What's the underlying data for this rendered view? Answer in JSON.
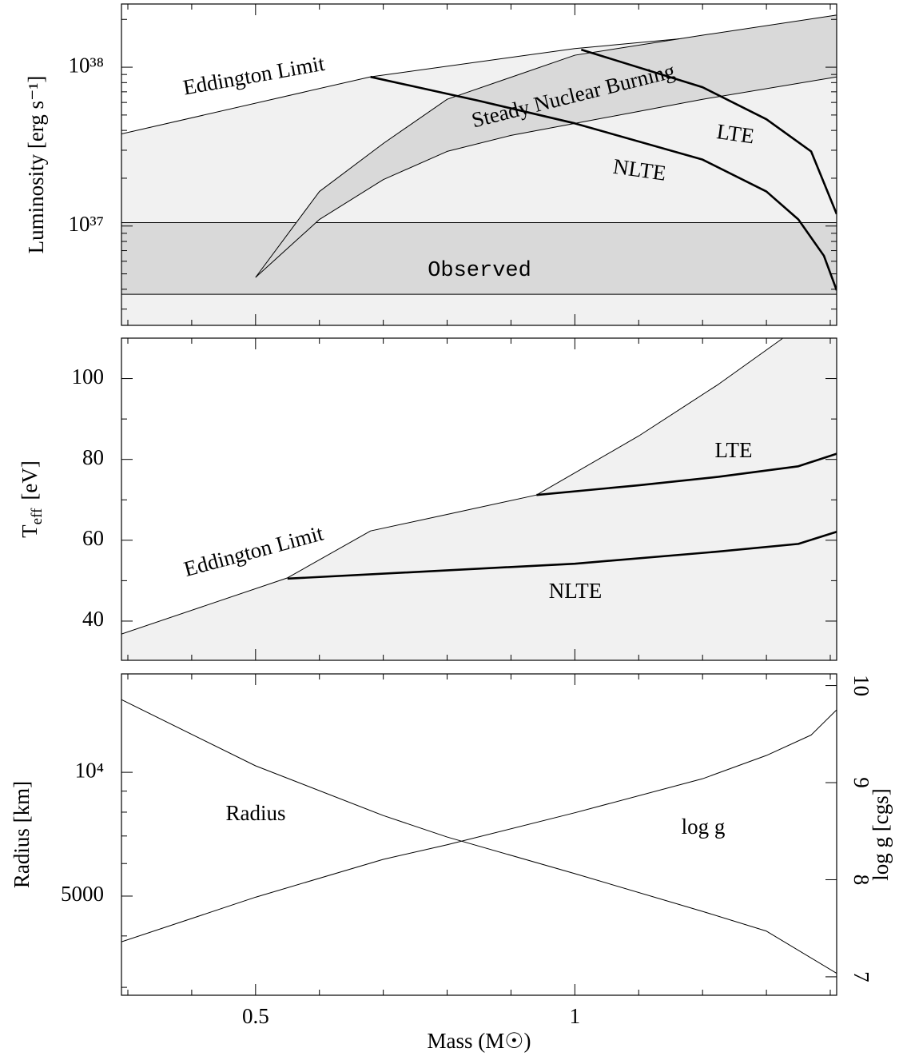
{
  "chart_data": [
    {
      "type": "line",
      "ylabel": "Luminosity [erg s⁻¹]",
      "ylog": true,
      "xlim": [
        0.29,
        1.41
      ],
      "ylim": [
        2.37e+36,
        2.5e+38
      ],
      "yticks": [
        {
          "value": 1e+37,
          "label": "10³⁷"
        },
        {
          "value": 1e+38,
          "label": "10³⁸"
        }
      ],
      "yminor_ticks": [
        3e+36,
        4e+36,
        5e+36,
        6e+36,
        7e+36,
        8e+36,
        9e+36,
        2e+37,
        3e+37,
        4e+37,
        5e+37,
        6e+37,
        7e+37,
        8e+37,
        9e+37,
        2e+38
      ],
      "series": [
        {
          "name": "Eddington Limit",
          "color": "#000000",
          "fill": "#f1f1f1",
          "width": 1,
          "x": [
            0.29,
            0.68,
            1.0,
            1.225,
            1.41
          ],
          "values": [
            3.8e+37,
            8.7e+37,
            1.31e+38,
            1.59e+38,
            2.13e+38
          ]
        },
        {
          "name": "Observed",
          "color": "#000000",
          "fill": "#d9d9d9",
          "range": [
            3.72e+36,
            1.05e+37
          ]
        },
        {
          "name": "Steady Nuclear Burning",
          "color": "#000000",
          "fill": "#d9d9d9",
          "upper": {
            "x": [
              0.5,
              0.6,
              0.7,
              0.8,
              1.0,
              1.2,
              1.41
            ],
            "values": [
              4.75e+36,
              1.65e+37,
              3.31e+37,
              6.28e+37,
              1.19e+38,
              1.59e+38,
              2.13e+38
            ]
          },
          "lower": {
            "x": [
              0.5,
              0.6,
              0.7,
              0.8,
              0.9,
              1.0,
              1.1,
              1.2,
              1.41
            ],
            "values": [
              4.75e+36,
              1.1e+37,
              1.96e+37,
              2.95e+37,
              3.72e+37,
              4.43e+37,
              5.27e+37,
              6.28e+37,
              8.69e+37
            ]
          }
        },
        {
          "name": "NLTE",
          "color": "#000000",
          "width": 2.6,
          "x": [
            0.68,
            0.85,
            1.0,
            1.2,
            1.3,
            1.35,
            1.39,
            1.41
          ],
          "values": [
            8.69e+37,
            6.14e+37,
            4.43e+37,
            2.62e+37,
            1.65e+37,
            1.1e+37,
            6.5e+36,
            3.94e+36
          ]
        },
        {
          "name": "LTE",
          "color": "#000000",
          "width": 2.6,
          "x": [
            1.01,
            1.2,
            1.3,
            1.37,
            1.41
          ],
          "values": [
            1.29e+38,
            7.48e+37,
            4.7e+37,
            2.95e+37,
            1.19e+37
          ]
        }
      ]
    },
    {
      "type": "line",
      "ylabel": {
        "main": "T",
        "sub": "eff",
        "unit": "[eV]"
      },
      "ylog": false,
      "xlim": [
        0.29,
        1.41
      ],
      "ylim": [
        30.3,
        110
      ],
      "yticks": [
        40,
        60,
        80,
        100
      ],
      "yminor_ticks": [
        50,
        70,
        90
      ],
      "series": [
        {
          "name": "Eddington Limit",
          "color": "#000000",
          "fill": "#f1f1f1",
          "width": 1,
          "x": [
            0.29,
            0.55,
            0.68,
            0.8,
            0.94,
            1.1,
            1.225,
            1.325
          ],
          "values": [
            36.8,
            50.7,
            62.3,
            66.4,
            71.2,
            85.8,
            98.6,
            109.9
          ]
        },
        {
          "name": "LTE",
          "color": "#000000",
          "width": 2.6,
          "x": [
            0.94,
            1.1,
            1.225,
            1.35,
            1.41
          ],
          "values": [
            71.2,
            73.6,
            75.7,
            78.3,
            81.4
          ]
        },
        {
          "name": "NLTE",
          "color": "#000000",
          "width": 2.6,
          "x": [
            0.55,
            1.0,
            1.225,
            1.35,
            1.41
          ],
          "values": [
            50.5,
            54.2,
            57.2,
            59.1,
            62.1
          ]
        }
      ]
    },
    {
      "type": "line",
      "ylabel": "Radius [km]",
      "y2label": "log g [cgs]",
      "xlabel": "Mass (M☉)",
      "ylog": true,
      "xlim": [
        0.29,
        1.41
      ],
      "xticks": [
        0.5,
        1
      ],
      "xminor_ticks": [
        0.3,
        0.4,
        0.6,
        0.7,
        0.8,
        0.9,
        1.1,
        1.2,
        1.3,
        1.4
      ],
      "ylim": [
        2870,
        17350
      ],
      "yticks": [
        {
          "value": 5000,
          "label": "5000"
        },
        {
          "value": 10000,
          "label": "10⁴"
        }
      ],
      "yminor_ticks": [
        3000,
        4000,
        6000,
        7000,
        8000,
        9000
      ],
      "y2lim": [
        6.81,
        10.12
      ],
      "y2ticks": [
        7,
        8,
        9,
        10
      ],
      "series": [
        {
          "name": "Radius",
          "color": "#000000",
          "width": 1,
          "x": [
            0.29,
            0.5,
            0.7,
            0.8,
            1.0,
            1.2,
            1.3,
            1.41
          ],
          "values": [
            15020,
            10370,
            7850,
            6960,
            5670,
            4590,
            4110,
            3245
          ]
        },
        {
          "name": "log g",
          "color": "#000000",
          "width": 1,
          "axis": "y2",
          "x": [
            0.29,
            0.5,
            0.7,
            0.8,
            1.0,
            1.2,
            1.3,
            1.37,
            1.41
          ],
          "values": [
            7.36,
            7.82,
            8.21,
            8.36,
            8.69,
            9.04,
            9.28,
            9.49,
            9.75
          ]
        }
      ]
    }
  ]
}
